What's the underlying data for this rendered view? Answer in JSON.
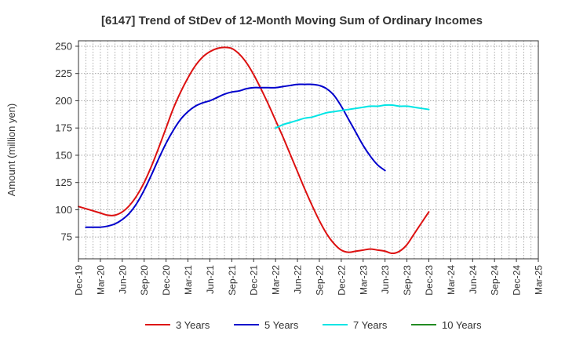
{
  "chart_data": {
    "type": "line",
    "title": "[6147]  Trend of StDev of 12-Month Moving Sum of Ordinary Incomes",
    "ylabel": "Amount (million yen)",
    "xlabel": "",
    "ylim": [
      55,
      255
    ],
    "yticks": [
      75,
      100,
      125,
      150,
      175,
      200,
      225,
      250
    ],
    "x_tick_labels": [
      "Dec-19",
      "Mar-20",
      "Jun-20",
      "Sep-20",
      "Dec-20",
      "Mar-21",
      "Jun-21",
      "Sep-21",
      "Dec-21",
      "Mar-22",
      "Jun-22",
      "Sep-22",
      "Dec-22",
      "Mar-23",
      "Jun-23",
      "Sep-23",
      "Dec-23",
      "Mar-24",
      "Jun-24",
      "Sep-24",
      "Dec-24",
      "Mar-25"
    ],
    "grid": true,
    "legend_position": "bottom",
    "series": [
      {
        "name": "3 Years",
        "color": "#dd1111",
        "points": [
          [
            0,
            103
          ],
          [
            1,
            101
          ],
          [
            2,
            99
          ],
          [
            3,
            97
          ],
          [
            4,
            95
          ],
          [
            5,
            95
          ],
          [
            6,
            98
          ],
          [
            7,
            104
          ],
          [
            8,
            113
          ],
          [
            9,
            125
          ],
          [
            10,
            140
          ],
          [
            11,
            157
          ],
          [
            12,
            175
          ],
          [
            13,
            193
          ],
          [
            14,
            208
          ],
          [
            15,
            221
          ],
          [
            16,
            232
          ],
          [
            17,
            240
          ],
          [
            18,
            245
          ],
          [
            19,
            248
          ],
          [
            20,
            249
          ],
          [
            21,
            248
          ],
          [
            22,
            243
          ],
          [
            23,
            235
          ],
          [
            24,
            224
          ],
          [
            25,
            211
          ],
          [
            26,
            197
          ],
          [
            27,
            182
          ],
          [
            28,
            167
          ],
          [
            29,
            151
          ],
          [
            30,
            135
          ],
          [
            31,
            119
          ],
          [
            32,
            104
          ],
          [
            33,
            90
          ],
          [
            34,
            78
          ],
          [
            35,
            69
          ],
          [
            36,
            63
          ],
          [
            37,
            61
          ],
          [
            38,
            62
          ],
          [
            39,
            63
          ],
          [
            40,
            64
          ],
          [
            41,
            63
          ],
          [
            42,
            62
          ],
          [
            43,
            60
          ],
          [
            44,
            62
          ],
          [
            45,
            68
          ],
          [
            46,
            78
          ],
          [
            47,
            88
          ],
          [
            48,
            98
          ]
        ]
      },
      {
        "name": "5 Years",
        "color": "#0000cc",
        "points": [
          [
            1,
            84
          ],
          [
            2,
            84
          ],
          [
            3,
            84
          ],
          [
            4,
            85
          ],
          [
            5,
            87
          ],
          [
            6,
            91
          ],
          [
            7,
            97
          ],
          [
            8,
            106
          ],
          [
            9,
            118
          ],
          [
            10,
            132
          ],
          [
            11,
            147
          ],
          [
            12,
            161
          ],
          [
            13,
            173
          ],
          [
            14,
            183
          ],
          [
            15,
            190
          ],
          [
            16,
            195
          ],
          [
            17,
            198
          ],
          [
            18,
            200
          ],
          [
            19,
            203
          ],
          [
            20,
            206
          ],
          [
            21,
            208
          ],
          [
            22,
            209
          ],
          [
            23,
            211
          ],
          [
            24,
            212
          ],
          [
            25,
            212
          ],
          [
            26,
            212
          ],
          [
            27,
            212
          ],
          [
            28,
            213
          ],
          [
            29,
            214
          ],
          [
            30,
            215
          ],
          [
            31,
            215
          ],
          [
            32,
            215
          ],
          [
            33,
            214
          ],
          [
            34,
            211
          ],
          [
            35,
            205
          ],
          [
            36,
            195
          ],
          [
            37,
            183
          ],
          [
            38,
            171
          ],
          [
            39,
            159
          ],
          [
            40,
            149
          ],
          [
            41,
            141
          ],
          [
            42,
            136
          ]
        ]
      },
      {
        "name": "7 Years",
        "color": "#00e5e5",
        "points": [
          [
            27,
            175
          ],
          [
            28,
            178
          ],
          [
            29,
            180
          ],
          [
            30,
            182
          ],
          [
            31,
            184
          ],
          [
            32,
            185
          ],
          [
            33,
            187
          ],
          [
            34,
            189
          ],
          [
            35,
            190
          ],
          [
            36,
            191
          ],
          [
            37,
            192
          ],
          [
            38,
            193
          ],
          [
            39,
            194
          ],
          [
            40,
            195
          ],
          [
            41,
            195
          ],
          [
            42,
            196
          ],
          [
            43,
            196
          ],
          [
            44,
            195
          ],
          [
            45,
            195
          ],
          [
            46,
            194
          ],
          [
            47,
            193
          ],
          [
            48,
            192
          ]
        ]
      },
      {
        "name": "10 Years",
        "color": "#228b22",
        "points": []
      }
    ]
  }
}
